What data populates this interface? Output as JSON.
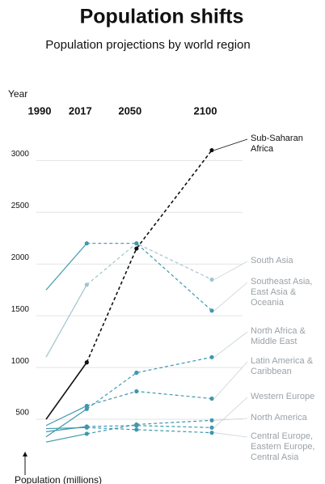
{
  "chart_data": {
    "type": "line",
    "title": "Population shifts",
    "subtitle": "Population projections by world region",
    "x_axis_label": "Year",
    "y_axis_label": "Population (millions)",
    "x": [
      1990,
      2017,
      2050,
      2100
    ],
    "xlim": [
      1990,
      2100
    ],
    "ylim": [
      0,
      3300
    ],
    "yticks": [
      500,
      1000,
      1500,
      2000,
      2500,
      3000
    ],
    "grid": true,
    "series": [
      {
        "name": "Sub-Saharan Africa",
        "color": "#111111",
        "values": [
          500,
          1050,
          2150,
          3100
        ]
      },
      {
        "name": "South Asia",
        "color": "#9fc5cc",
        "values": [
          1100,
          1800,
          2200,
          1850
        ]
      },
      {
        "name": "Southeast Asia, East Asia & Oceania",
        "color": "#3f98ad",
        "values": [
          1750,
          2200,
          2200,
          1550
        ]
      },
      {
        "name": "North Africa & Middle East",
        "color": "#3f98ad",
        "values": [
          330,
          600,
          950,
          1100
        ]
      },
      {
        "name": "Latin America & Caribbean",
        "color": "#3f98ad",
        "values": [
          440,
          630,
          770,
          700
        ]
      },
      {
        "name": "Western Europe",
        "color": "#3f98ad",
        "values": [
          380,
          430,
          440,
          420
        ]
      },
      {
        "name": "North America",
        "color": "#3f98ad",
        "values": [
          280,
          360,
          450,
          490
        ]
      },
      {
        "name": "Central Europe, Eastern Europe, Central Asia",
        "color": "#3f98ad",
        "values": [
          410,
          420,
          400,
          370
        ]
      }
    ]
  }
}
